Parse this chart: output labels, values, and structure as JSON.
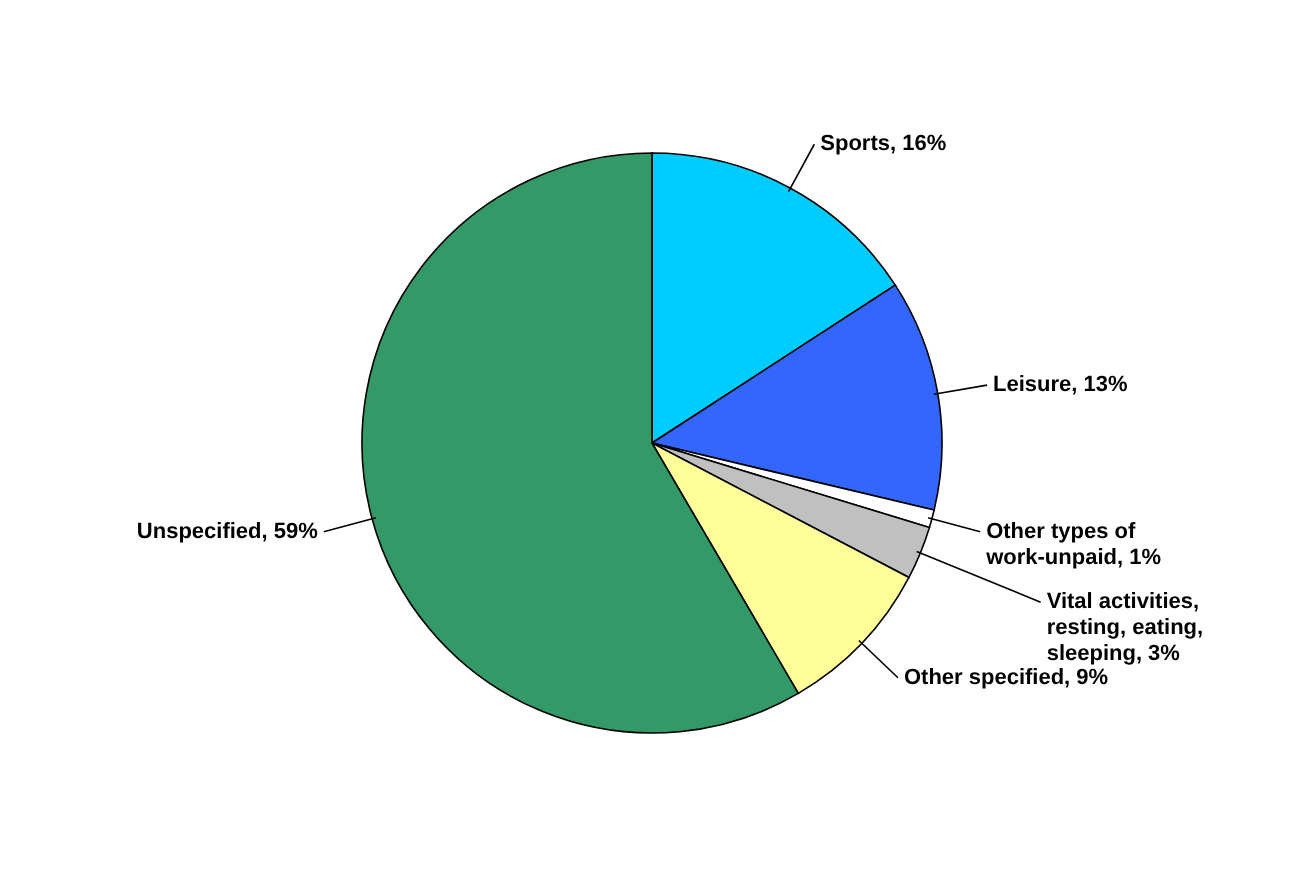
{
  "chart_data": {
    "type": "pie",
    "categories": [
      "Sports",
      "Leisure",
      "Other types of work-unpaid",
      "Vital activities, resting, eating, sleeping",
      "Other specified",
      "Unspecified"
    ],
    "values": [
      16,
      13,
      1,
      3,
      9,
      59
    ],
    "colors": [
      "#00ccff",
      "#3366ff",
      "#ffffff",
      "#c0c0c0",
      "#ffff99",
      "#339966"
    ],
    "value_labels": [
      "16%",
      "13%",
      "1%",
      "3%",
      "9%",
      "59%"
    ]
  }
}
